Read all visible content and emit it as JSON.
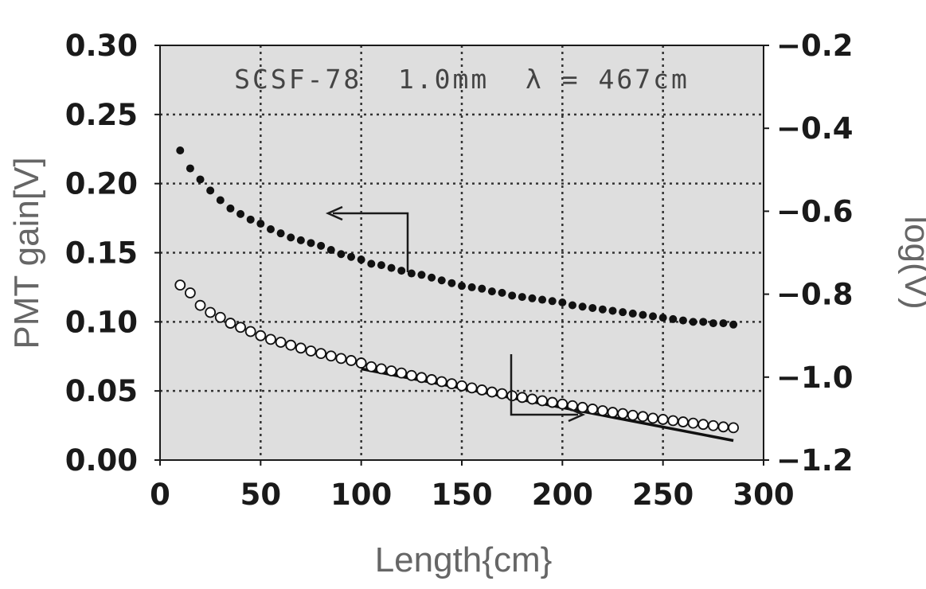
{
  "chart_data": {
    "type": "scatter",
    "annotation": "SCSF-78  1.0mm  λ = 467cm",
    "xlabel": "Length{cm}",
    "ylabel": "PMT gain[V]",
    "y2label": "log(V)",
    "xlim": [
      0,
      300
    ],
    "ylim": [
      0,
      0.3
    ],
    "y2lim": [
      -1.2,
      -0.2
    ],
    "xticks": [
      "0",
      "50",
      "100",
      "150",
      "200",
      "250",
      "300"
    ],
    "yticks": [
      "0.00",
      "0.05",
      "0.10",
      "0.15",
      "0.20",
      "0.25",
      "0.30"
    ],
    "y2ticks": [
      "−1.2",
      "−1.0",
      "−0.8",
      "−0.6",
      "−0.4",
      "−0.2"
    ],
    "grid": true,
    "series": [
      {
        "marker": "filled-circle",
        "axis": "left",
        "x": [
          10,
          15,
          20,
          25,
          30,
          35,
          40,
          45,
          50,
          55,
          60,
          65,
          70,
          75,
          80,
          85,
          90,
          95,
          100,
          105,
          110,
          115,
          120,
          125,
          130,
          135,
          140,
          145,
          150,
          155,
          160,
          165,
          170,
          175,
          180,
          185,
          190,
          195,
          200,
          205,
          210,
          215,
          220,
          225,
          230,
          235,
          240,
          245,
          250,
          255,
          260,
          265,
          270,
          275,
          280,
          285
        ],
        "values": [
          0.224,
          0.211,
          0.203,
          0.195,
          0.188,
          0.182,
          0.178,
          0.174,
          0.171,
          0.167,
          0.164,
          0.161,
          0.159,
          0.157,
          0.155,
          0.152,
          0.149,
          0.147,
          0.145,
          0.142,
          0.141,
          0.139,
          0.137,
          0.135,
          0.134,
          0.132,
          0.13,
          0.128,
          0.126,
          0.125,
          0.124,
          0.122,
          0.121,
          0.119,
          0.118,
          0.117,
          0.116,
          0.115,
          0.114,
          0.112,
          0.111,
          0.11,
          0.109,
          0.108,
          0.107,
          0.106,
          0.105,
          0.104,
          0.103,
          0.102,
          0.101,
          0.1,
          0.1,
          0.099,
          0.099,
          0.098
        ]
      },
      {
        "marker": "open-circle",
        "axis": "right",
        "x": [
          10,
          15,
          20,
          25,
          30,
          35,
          40,
          45,
          50,
          55,
          60,
          65,
          70,
          75,
          80,
          85,
          90,
          95,
          100,
          105,
          110,
          115,
          120,
          125,
          130,
          135,
          140,
          145,
          150,
          155,
          160,
          165,
          170,
          175,
          180,
          185,
          190,
          195,
          200,
          205,
          210,
          215,
          220,
          225,
          230,
          235,
          240,
          245,
          250,
          255,
          260,
          265,
          270,
          275,
          280,
          285
        ],
        "values": [
          -0.778,
          -0.797,
          -0.827,
          -0.844,
          -0.856,
          -0.87,
          -0.88,
          -0.89,
          -0.9,
          -0.909,
          -0.916,
          -0.923,
          -0.93,
          -0.937,
          -0.943,
          -0.949,
          -0.955,
          -0.96,
          -0.966,
          -0.975,
          -0.98,
          -0.985,
          -0.99,
          -0.996,
          -1.001,
          -1.006,
          -1.011,
          -1.016,
          -1.021,
          -1.026,
          -1.031,
          -1.036,
          -1.04,
          -1.045,
          -1.049,
          -1.053,
          -1.057,
          -1.061,
          -1.065,
          -1.069,
          -1.073,
          -1.077,
          -1.081,
          -1.085,
          -1.088,
          -1.092,
          -1.095,
          -1.099,
          -1.102,
          -1.105,
          -1.108,
          -1.111,
          -1.114,
          -1.117,
          -1.12,
          -1.122
        ]
      }
    ],
    "fit_line": {
      "axis": "right",
      "x": [
        100,
        285
      ],
      "values": [
        -0.98,
        -1.153
      ]
    }
  }
}
